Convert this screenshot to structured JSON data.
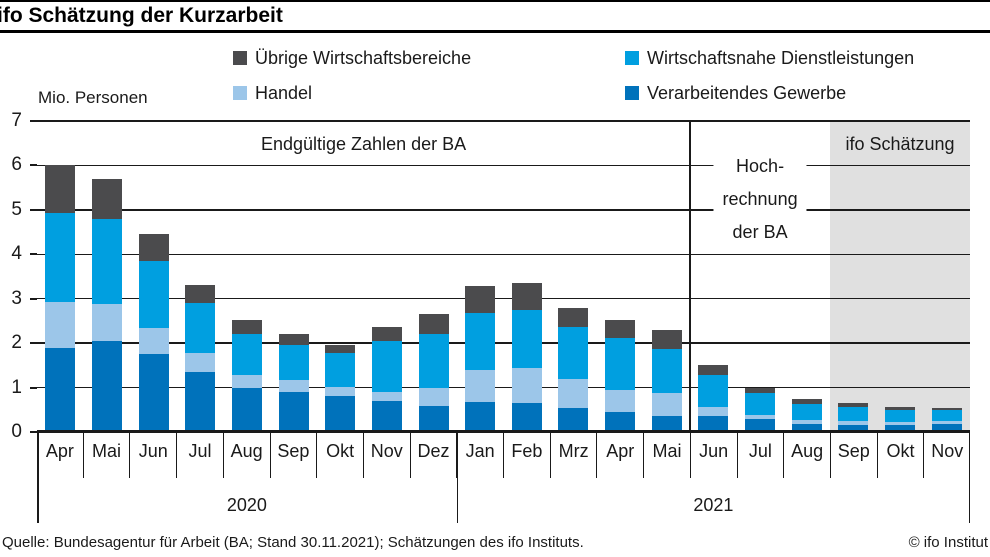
{
  "header": {
    "title": "ifo Schätzung der Kurzarbeit"
  },
  "legend": [
    {
      "label": "Übrige Wirtschaftsbereiche",
      "color": "#4B4B4D"
    },
    {
      "label": "Wirtschaftsnahe Dienstleistungen",
      "color": "#009FE0"
    },
    {
      "label": "Handel",
      "color": "#9CC6E9"
    },
    {
      "label": "Verarbeitendes Gewerbe",
      "color": "#0072BB"
    }
  ],
  "chart_data": {
    "type": "bar",
    "stacked": true,
    "title": "ifo Schätzung der Kurzarbeit",
    "unit_label": "Mio. Personen",
    "ylabel": "Mio. Personen",
    "ylim": [
      0,
      7
    ],
    "yticks": [
      0,
      1,
      2,
      3,
      4,
      5,
      6,
      7
    ],
    "grid": true,
    "legend_position": "top",
    "shade_color": "#E0E0E0",
    "categories": [
      "Apr",
      "Mai",
      "Jun",
      "Jul",
      "Aug",
      "Sep",
      "Okt",
      "Nov",
      "Dez",
      "Jan",
      "Feb",
      "Mrz",
      "Apr",
      "Mai",
      "Jun",
      "Jul",
      "Aug",
      "Sep",
      "Okt",
      "Nov"
    ],
    "year_groups": [
      {
        "label": "2020",
        "span": 9
      },
      {
        "label": "2021",
        "span": 11
      }
    ],
    "series": [
      {
        "name": "Verarbeitendes Gewerbe",
        "color": "#0072BB",
        "values": [
          1.9,
          2.05,
          1.75,
          1.35,
          1.0,
          0.9,
          0.8,
          0.7,
          0.59,
          0.67,
          0.65,
          0.55,
          0.44,
          0.37,
          0.36,
          0.29,
          0.18,
          0.16,
          0.16,
          0.17
        ]
      },
      {
        "name": "Handel",
        "color": "#9CC6E9",
        "values": [
          1.03,
          0.83,
          0.6,
          0.43,
          0.28,
          0.28,
          0.22,
          0.21,
          0.41,
          0.73,
          0.8,
          0.64,
          0.51,
          0.5,
          0.21,
          0.1,
          0.09,
          0.08,
          0.07,
          0.07
        ]
      },
      {
        "name": "Wirtschaftsnahe Dienstleistungen",
        "color": "#009FE0",
        "values": [
          2.0,
          1.92,
          1.5,
          1.13,
          0.92,
          0.78,
          0.75,
          1.14,
          1.2,
          1.29,
          1.3,
          1.18,
          1.16,
          1.01,
          0.71,
          0.49,
          0.36,
          0.33,
          0.27,
          0.25
        ]
      },
      {
        "name": "Übrige Wirtschaftsbereiche",
        "color": "#4B4B4D",
        "values": [
          1.07,
          0.9,
          0.6,
          0.41,
          0.32,
          0.24,
          0.2,
          0.32,
          0.45,
          0.6,
          0.61,
          0.43,
          0.41,
          0.42,
          0.23,
          0.12,
          0.11,
          0.09,
          0.07,
          0.06
        ]
      }
    ],
    "totals": [
      6.0,
      5.7,
      4.45,
      3.32,
      2.52,
      2.2,
      1.97,
      2.37,
      2.65,
      3.29,
      3.36,
      2.8,
      2.52,
      2.3,
      1.51,
      1.0,
      0.74,
      0.66,
      0.57,
      0.55
    ],
    "sections": [
      {
        "label_lines": [
          "Endgültige Zahlen der BA"
        ],
        "from": 0,
        "to": 13,
        "shaded": false,
        "divider_left": false
      },
      {
        "label_lines": [
          "Hoch-",
          "rechnung",
          "der BA"
        ],
        "from": 14,
        "to": 16,
        "shaded": false,
        "divider_left": true
      },
      {
        "label_lines": [
          "ifo Schätzung"
        ],
        "from": 17,
        "to": 19,
        "shaded": true,
        "divider_left": false
      }
    ]
  },
  "footer": {
    "source": "Quelle: Bundesagentur für Arbeit (BA; Stand 30.11.2021); Schätzungen des ifo Instituts.",
    "copyright": "© ifo Institut"
  }
}
